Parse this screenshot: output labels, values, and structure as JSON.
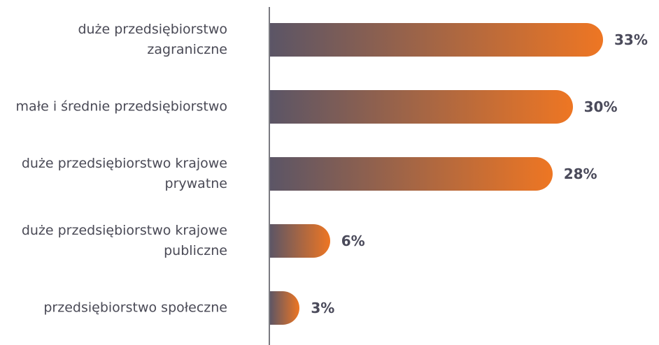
{
  "chart_data": {
    "type": "bar",
    "orientation": "horizontal",
    "categories": [
      "duże przedsiębiorstwo zagraniczne",
      "małe i średnie przedsiębiorstwo",
      "duże przedsiębiorstwo krajowe prywatne",
      "duże przedsiębiorstwo krajowe publiczne",
      "przedsiębiorstwo społeczne"
    ],
    "values": [
      33,
      30,
      28,
      6,
      3
    ],
    "value_labels": [
      "33%",
      "30%",
      "28%",
      "6%",
      "3%"
    ],
    "color": [
      "#5b5566",
      "#ee7623"
    ]
  }
}
